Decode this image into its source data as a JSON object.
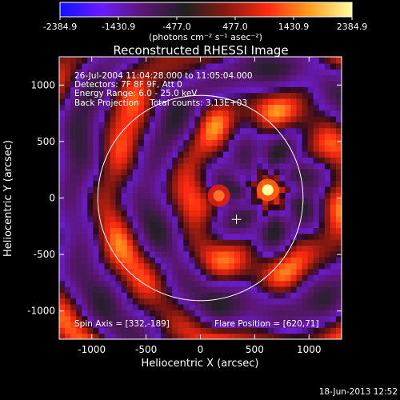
{
  "chart_data": {
    "type": "heatmap",
    "title": "Reconstructed RHESSI Image",
    "xlabel": "Heliocentric X (arcsec)",
    "ylabel": "Heliocentric Y (arcsec)",
    "xlim": [
      -1300,
      1300
    ],
    "ylim": [
      -1250,
      1250
    ],
    "x_ticks": [
      -1000,
      -500,
      0,
      500,
      1000
    ],
    "x_tick_labels": [
      "-1000",
      "-500",
      "0",
      "500",
      "1000"
    ],
    "y_ticks": [
      -1000,
      -500,
      0,
      500,
      1000
    ],
    "y_tick_labels": [
      "-1000",
      "-500",
      "0",
      "500",
      "1000"
    ],
    "colorbar": {
      "min": -2384.9,
      "max": 2384.9,
      "tick_labels": [
        "-2384.9",
        "-1430.9",
        "-477.0",
        "477.0",
        "1430.9",
        "2384.9"
      ],
      "unit_label": "(photons cm⁻² s⁻¹ asec⁻²)",
      "colors": [
        "#1010ff",
        "#6a1cff",
        "#5a1670",
        "#202020",
        "#8a1a10",
        "#ff2a10",
        "#ffa020",
        "#ffffa0"
      ]
    },
    "annotations": [
      "26-Jul-2004 11:04:28.000 to 11:05:04.000",
      "Detectors: 7F 8F 9F, Att 0",
      "Energy Range: 6.0 - 25.0 keV",
      "Back Projection    Total counts: 3.13E+03"
    ],
    "spin_axis_label": "Spin Axis = [332,-189]",
    "flare_position_label": "Flare Position = [620,71]",
    "spin_axis": [
      332,
      -189
    ],
    "flare_position": [
      620,
      71
    ],
    "solar_limb_radius_arcsec": 945,
    "sources": [
      {
        "x": 620,
        "y": 71,
        "value": 2384.9
      },
      {
        "x": 170,
        "y": 20,
        "value": 1500
      }
    ],
    "timestamp": "18-Jun-2013 12:52"
  },
  "colors": {
    "background": "#000000",
    "foreground": "#ffffff",
    "limb": "#ffffff"
  }
}
